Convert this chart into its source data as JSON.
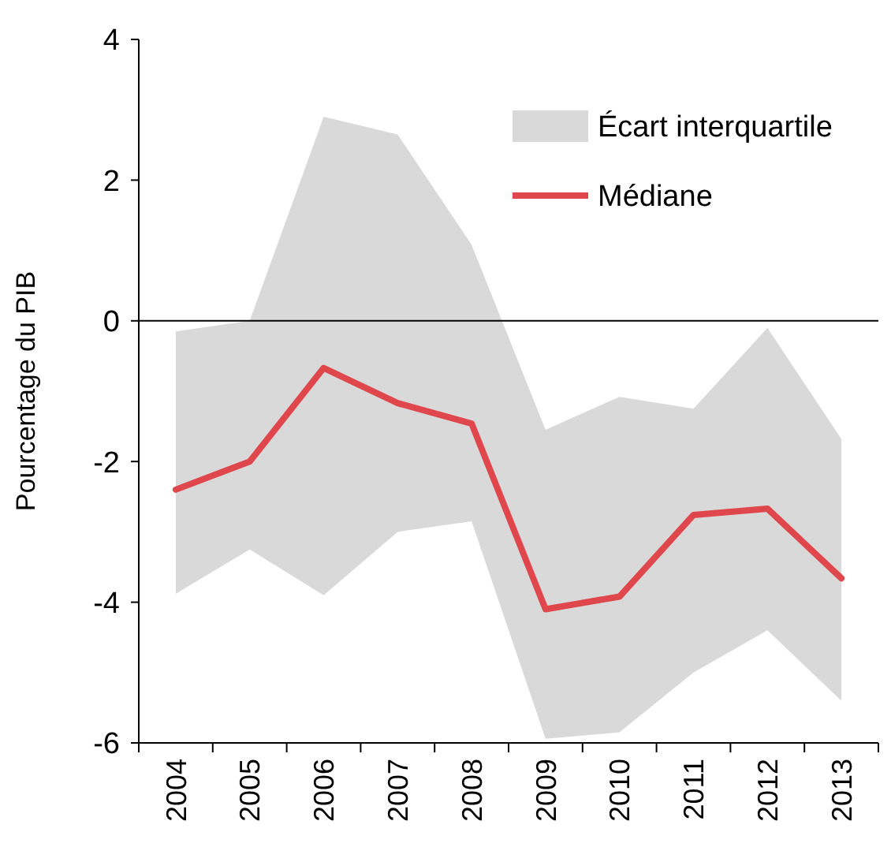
{
  "chart_data": {
    "type": "line",
    "ylabel": "Pourcentage du PIB",
    "categories": [
      "2004",
      "2005",
      "2006",
      "2007",
      "2008",
      "2009",
      "2010",
      "2011",
      "2012",
      "2013"
    ],
    "ylim": [
      -6,
      4
    ],
    "yticks": [
      -6,
      -4,
      -2,
      0,
      2,
      4
    ],
    "legend": "top right",
    "ref_lines": [
      {
        "axis": "y",
        "value": 0,
        "color": "#000000"
      }
    ],
    "annotations": [
      "Écart interquartile"
    ],
    "series": [
      {
        "name": "Médiane",
        "color": "#e0474c",
        "values": [
          -2.4,
          -2.0,
          -0.67,
          -1.17,
          -1.46,
          -4.1,
          -3.92,
          -2.76,
          -2.67,
          -3.66
        ],
        "lower": [
          -3.88,
          -3.25,
          -3.9,
          -3.0,
          -2.85,
          -5.94,
          -5.85,
          -5.0,
          -4.4,
          -5.4
        ],
        "upper": [
          -0.15,
          0.0,
          2.9,
          2.65,
          1.08,
          -1.55,
          -1.08,
          -1.25,
          -0.1,
          -1.68
        ]
      }
    ]
  }
}
